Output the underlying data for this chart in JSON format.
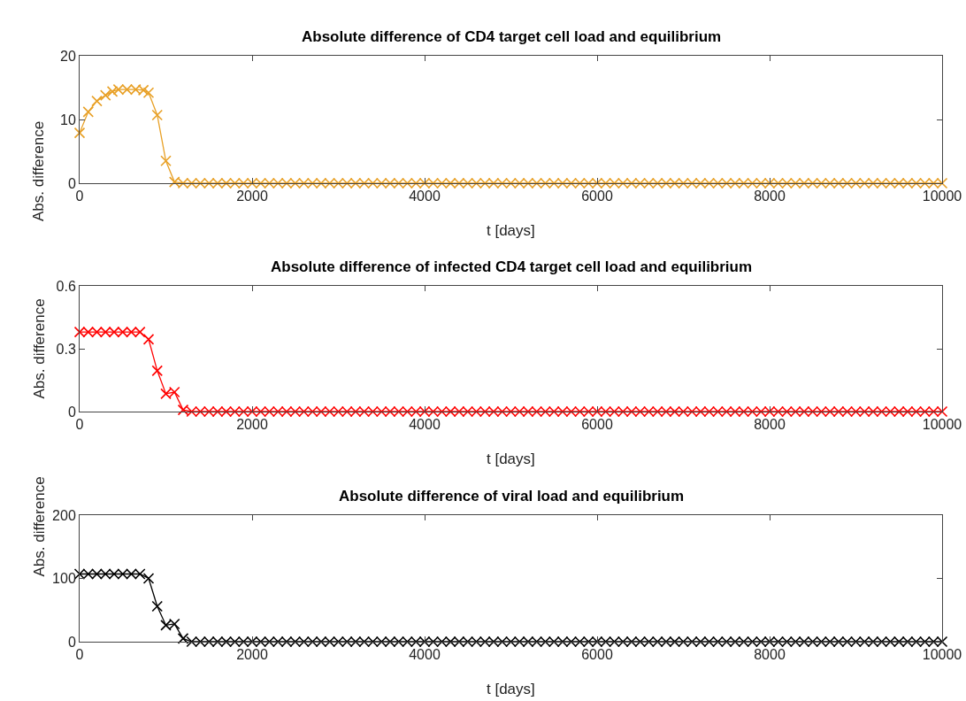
{
  "chart_data": [
    {
      "type": "line",
      "title": "Absolute difference of CD4 target cell load and equilibrium",
      "xlabel": "t [days]",
      "ylabel": "Abs. difference",
      "xlim": [
        0,
        10000
      ],
      "xticks": [
        0,
        2000,
        4000,
        6000,
        8000,
        10000
      ],
      "ylim": [
        0,
        20
      ],
      "yticks": [
        0,
        10,
        20
      ],
      "marker": "cross",
      "line_style": "solid",
      "series": [
        {
          "color": "#e8a026",
          "x": [
            0,
            100,
            200,
            300,
            380,
            450,
            550,
            650,
            740,
            800,
            900,
            1000,
            1100,
            1200,
            1300,
            1400,
            1500,
            1600,
            1700,
            1800,
            1900,
            2000,
            2100,
            2200,
            2300,
            2400,
            2500,
            2600,
            2700,
            2800,
            2900,
            3000,
            3100,
            3200,
            3300,
            3400,
            3500,
            3600,
            3700,
            3800,
            3900,
            4000,
            4100,
            4200,
            4300,
            4400,
            4500,
            4600,
            4700,
            4800,
            4900,
            5000,
            5100,
            5200,
            5300,
            5400,
            5500,
            5600,
            5700,
            5800,
            5900,
            6000,
            6100,
            6200,
            6300,
            6400,
            6500,
            6600,
            6700,
            6800,
            6900,
            7000,
            7100,
            7200,
            7300,
            7400,
            7500,
            7600,
            7700,
            7800,
            7900,
            8000,
            8100,
            8200,
            8300,
            8400,
            8500,
            8600,
            8700,
            8800,
            8900,
            9000,
            9100,
            9200,
            9300,
            9400,
            9500,
            9600,
            9700,
            9800,
            9900,
            10000
          ],
          "values": [
            7.9,
            11.2,
            12.9,
            13.8,
            14.4,
            14.7,
            14.7,
            14.7,
            14.6,
            14.2,
            10.7,
            3.5,
            0.2,
            0,
            0,
            0,
            0,
            0,
            0,
            0,
            0,
            0,
            0,
            0,
            0,
            0,
            0,
            0,
            0,
            0,
            0,
            0,
            0,
            0,
            0,
            0,
            0,
            0,
            0,
            0,
            0,
            0,
            0,
            0,
            0,
            0,
            0,
            0,
            0,
            0,
            0,
            0,
            0,
            0,
            0,
            0,
            0,
            0,
            0,
            0,
            0,
            0,
            0,
            0,
            0,
            0,
            0,
            0,
            0,
            0,
            0,
            0,
            0,
            0,
            0,
            0,
            0,
            0,
            0,
            0,
            0,
            0,
            0,
            0,
            0,
            0,
            0,
            0,
            0,
            0,
            0,
            0,
            0,
            0,
            0,
            0,
            0,
            0,
            0,
            0,
            0,
            0
          ]
        }
      ]
    },
    {
      "type": "line",
      "title": "Absolute difference of infected CD4 target cell load and equilibrium",
      "xlabel": "t [days]",
      "ylabel": "Abs. difference",
      "xlim": [
        0,
        10000
      ],
      "xticks": [
        0,
        2000,
        4000,
        6000,
        8000,
        10000
      ],
      "ylim": [
        0,
        0.6
      ],
      "yticks": [
        0,
        0.3,
        0.6
      ],
      "marker": "cross",
      "line_style": "solid",
      "series": [
        {
          "color": "#ff0000",
          "x": [
            0,
            100,
            200,
            300,
            400,
            500,
            600,
            700,
            800,
            900,
            1000,
            1100,
            1200,
            1300,
            1400,
            1500,
            1600,
            1700,
            1800,
            1900,
            2000,
            2100,
            2200,
            2300,
            2400,
            2500,
            2600,
            2700,
            2800,
            2900,
            3000,
            3100,
            3200,
            3300,
            3400,
            3500,
            3600,
            3700,
            3800,
            3900,
            4000,
            4100,
            4200,
            4300,
            4400,
            4500,
            4600,
            4700,
            4800,
            4900,
            5000,
            5100,
            5200,
            5300,
            5400,
            5500,
            5600,
            5700,
            5800,
            5900,
            6000,
            6100,
            6200,
            6300,
            6400,
            6500,
            6600,
            6700,
            6800,
            6900,
            7000,
            7100,
            7200,
            7300,
            7400,
            7500,
            7600,
            7700,
            7800,
            7900,
            8000,
            8100,
            8200,
            8300,
            8400,
            8500,
            8600,
            8700,
            8800,
            8900,
            9000,
            9100,
            9200,
            9300,
            9400,
            9500,
            9600,
            9700,
            9800,
            9900,
            10000
          ],
          "values": [
            0.38,
            0.38,
            0.38,
            0.38,
            0.38,
            0.38,
            0.38,
            0.38,
            0.345,
            0.195,
            0.085,
            0.093,
            0.008,
            0,
            0,
            0,
            0,
            0,
            0,
            0,
            0,
            0,
            0,
            0,
            0,
            0,
            0,
            0,
            0,
            0,
            0,
            0,
            0,
            0,
            0,
            0,
            0,
            0,
            0,
            0,
            0,
            0,
            0,
            0,
            0,
            0,
            0,
            0,
            0,
            0,
            0,
            0,
            0,
            0,
            0,
            0,
            0,
            0,
            0,
            0,
            0,
            0,
            0,
            0,
            0,
            0,
            0,
            0,
            0,
            0,
            0,
            0,
            0,
            0,
            0,
            0,
            0,
            0,
            0,
            0,
            0,
            0,
            0,
            0,
            0,
            0,
            0,
            0,
            0,
            0,
            0,
            0,
            0,
            0,
            0,
            0,
            0,
            0,
            0,
            0,
            0
          ]
        }
      ]
    },
    {
      "type": "line",
      "title": "Absolute difference of viral load and equilibrium",
      "xlabel": "t [days]",
      "ylabel": "Abs. difference",
      "xlim": [
        0,
        10000
      ],
      "xticks": [
        0,
        2000,
        4000,
        6000,
        8000,
        10000
      ],
      "ylim": [
        0,
        200
      ],
      "yticks": [
        0,
        100,
        200
      ],
      "marker": "cross",
      "line_style": "solid",
      "series": [
        {
          "color": "#000000",
          "x": [
            0,
            100,
            200,
            300,
            400,
            500,
            600,
            700,
            800,
            900,
            1000,
            1100,
            1200,
            1300,
            1400,
            1500,
            1600,
            1700,
            1800,
            1900,
            2000,
            2100,
            2200,
            2300,
            2400,
            2500,
            2600,
            2700,
            2800,
            2900,
            3000,
            3100,
            3200,
            3300,
            3400,
            3500,
            3600,
            3700,
            3800,
            3900,
            4000,
            4100,
            4200,
            4300,
            4400,
            4500,
            4600,
            4700,
            4800,
            4900,
            5000,
            5100,
            5200,
            5300,
            5400,
            5500,
            5600,
            5700,
            5800,
            5900,
            6000,
            6100,
            6200,
            6300,
            6400,
            6500,
            6600,
            6700,
            6800,
            6900,
            7000,
            7100,
            7200,
            7300,
            7400,
            7500,
            7600,
            7700,
            7800,
            7900,
            8000,
            8100,
            8200,
            8300,
            8400,
            8500,
            8600,
            8700,
            8800,
            8900,
            9000,
            9100,
            9200,
            9300,
            9400,
            9500,
            9600,
            9700,
            9800,
            9900,
            10000
          ],
          "values": [
            107,
            107,
            107,
            107,
            107,
            107,
            107,
            107,
            100,
            56,
            26,
            28,
            5,
            0,
            0,
            0,
            0,
            0,
            0,
            0,
            0,
            0,
            0,
            0,
            0,
            0,
            0,
            0,
            0,
            0,
            0,
            0,
            0,
            0,
            0,
            0,
            0,
            0,
            0,
            0,
            0,
            0,
            0,
            0,
            0,
            0,
            0,
            0,
            0,
            0,
            0,
            0,
            0,
            0,
            0,
            0,
            0,
            0,
            0,
            0,
            0,
            0,
            0,
            0,
            0,
            0,
            0,
            0,
            0,
            0,
            0,
            0,
            0,
            0,
            0,
            0,
            0,
            0,
            0,
            0,
            0,
            0,
            0,
            0,
            0,
            0,
            0,
            0,
            0,
            0,
            0,
            0,
            0,
            0,
            0,
            0,
            0,
            0,
            0,
            0,
            0
          ]
        }
      ]
    }
  ]
}
